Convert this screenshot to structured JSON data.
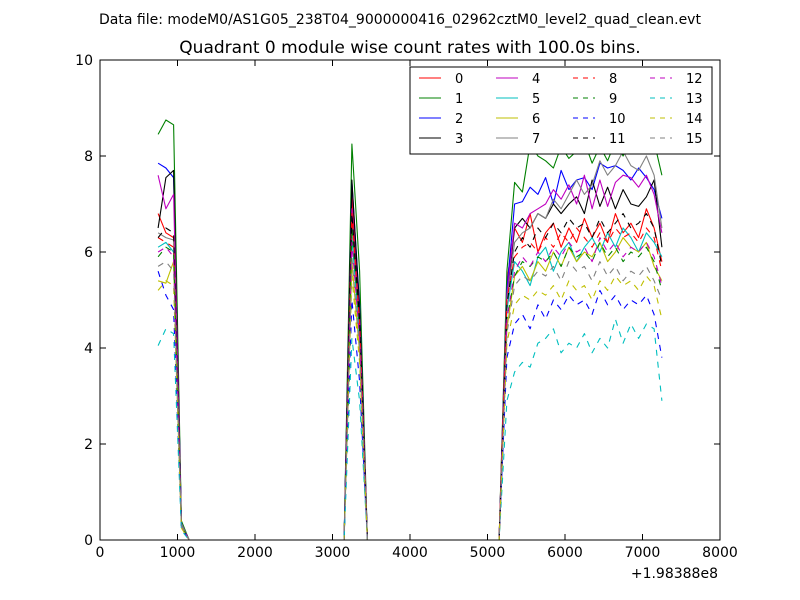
{
  "suptitle": "Data file: modeM0/AS1G05_238T04_9000000416_02962cztM0_level2_quad_clean.evt",
  "chart_data": {
    "type": "line",
    "title": "Quadrant 0 module wise count rates with 100.0s bins.",
    "xlabel": "",
    "ylabel": "",
    "x_offset_label": "+1.98388e8",
    "xlim": [
      0,
      8000
    ],
    "ylim": [
      0,
      10
    ],
    "xticks": [
      0,
      1000,
      2000,
      3000,
      4000,
      5000,
      6000,
      7000,
      8000
    ],
    "yticks": [
      0,
      2,
      4,
      6,
      8,
      10
    ],
    "grid": false,
    "legend_placement": "top-right",
    "legend_columns": 4,
    "x": [
      750,
      850,
      950,
      1050,
      1150,
      1250,
      3150,
      3250,
      3350,
      3450,
      3550,
      5150,
      5250,
      5350,
      5450,
      5550,
      5650,
      5750,
      5850,
      5950,
      6050,
      6150,
      6250,
      6350,
      6450,
      6550,
      6650,
      6750,
      6850,
      6950,
      7050,
      7150,
      7250
    ],
    "series": [
      {
        "name": "0",
        "color": "#ff0000",
        "dash": "solid",
        "values": [
          6.8,
          6.4,
          6.3,
          0.3,
          0.0,
          0.0,
          0.0,
          7.2,
          4.7,
          0.0,
          0.0,
          0.0,
          5.4,
          6.5,
          6.2,
          6.8,
          6.0,
          6.4,
          6.6,
          6.1,
          6.5,
          6.2,
          6.7,
          6.3,
          6.6,
          6.2,
          6.8,
          6.4,
          6.6,
          6.3,
          6.9,
          6.5,
          5.8
        ]
      },
      {
        "name": "1",
        "color": "#008000",
        "dash": "solid",
        "values": [
          8.45,
          8.75,
          8.65,
          0.4,
          0.0,
          0.0,
          0.0,
          8.25,
          5.6,
          0.0,
          0.0,
          0.0,
          5.6,
          7.45,
          7.25,
          8.25,
          8.0,
          7.9,
          7.75,
          8.2,
          7.95,
          8.1,
          8.3,
          7.85,
          8.2,
          7.9,
          8.3,
          8.0,
          8.4,
          8.25,
          8.5,
          8.3,
          7.6
        ]
      },
      {
        "name": "2",
        "color": "#0000ff",
        "dash": "solid",
        "values": [
          7.85,
          7.75,
          7.55,
          0.35,
          0.0,
          0.0,
          0.0,
          7.45,
          4.9,
          0.0,
          0.0,
          0.0,
          5.2,
          7.0,
          7.05,
          7.35,
          7.2,
          7.55,
          7.0,
          7.7,
          7.3,
          7.5,
          7.55,
          7.3,
          7.85,
          7.75,
          7.8,
          7.7,
          7.5,
          7.75,
          7.55,
          7.3,
          6.7
        ]
      },
      {
        "name": "3",
        "color": "#000000",
        "dash": "solid",
        "values": [
          6.5,
          7.55,
          7.7,
          0.35,
          0.0,
          0.0,
          0.0,
          7.5,
          4.8,
          0.0,
          0.0,
          0.0,
          5.0,
          6.5,
          6.7,
          6.5,
          6.8,
          6.7,
          7.0,
          6.8,
          7.0,
          7.15,
          6.8,
          7.5,
          6.95,
          7.35,
          6.9,
          7.3,
          7.0,
          6.95,
          7.15,
          7.5,
          6.1
        ]
      },
      {
        "name": "4",
        "color": "#bf00bf",
        "dash": "solid",
        "values": [
          7.6,
          6.9,
          7.2,
          0.3,
          0.0,
          0.0,
          0.0,
          6.9,
          4.6,
          0.0,
          0.0,
          0.0,
          5.1,
          6.6,
          6.5,
          6.8,
          6.9,
          7.0,
          7.3,
          7.1,
          7.4,
          7.0,
          7.6,
          6.9,
          7.5,
          6.95,
          7.45,
          7.6,
          7.55,
          7.35,
          7.6,
          7.2,
          6.4
        ]
      },
      {
        "name": "5",
        "color": "#00bfbf",
        "dash": "solid",
        "values": [
          6.1,
          6.2,
          6.0,
          0.3,
          0.0,
          0.0,
          0.0,
          6.3,
          4.2,
          0.0,
          0.0,
          0.0,
          4.8,
          5.8,
          5.6,
          5.3,
          5.9,
          6.1,
          5.6,
          6.0,
          6.2,
          5.8,
          6.1,
          6.3,
          6.0,
          6.4,
          6.1,
          6.5,
          6.3,
          6.0,
          6.4,
          6.2,
          5.9
        ]
      },
      {
        "name": "6",
        "color": "#bfbf00",
        "dash": "solid",
        "values": [
          5.4,
          5.35,
          5.8,
          0.3,
          0.0,
          0.0,
          0.0,
          5.8,
          3.9,
          0.0,
          0.0,
          0.0,
          4.4,
          5.5,
          5.7,
          5.4,
          5.8,
          5.6,
          6.0,
          5.7,
          6.1,
          5.8,
          6.0,
          5.9,
          6.2,
          5.8,
          6.0,
          6.3,
          6.1,
          6.0,
          6.2,
          5.7,
          5.4
        ]
      },
      {
        "name": "7",
        "color": "#808080",
        "dash": "solid",
        "values": [
          6.4,
          6.3,
          6.25,
          0.35,
          0.0,
          0.0,
          0.0,
          6.6,
          4.4,
          0.0,
          0.0,
          0.0,
          5.0,
          6.2,
          6.4,
          6.5,
          6.8,
          6.7,
          7.1,
          6.9,
          7.2,
          7.5,
          7.2,
          7.4,
          7.9,
          7.6,
          7.8,
          8.1,
          7.8,
          7.7,
          8.0,
          7.6,
          6.5
        ]
      },
      {
        "name": "8",
        "color": "#ff0000",
        "dash": "dashed",
        "values": [
          6.3,
          6.2,
          6.1,
          0.3,
          0.0,
          0.0,
          0.0,
          6.8,
          4.5,
          0.0,
          0.0,
          0.0,
          5.0,
          5.9,
          6.1,
          6.2,
          6.0,
          6.3,
          6.1,
          6.4,
          6.2,
          6.5,
          6.3,
          6.1,
          6.4,
          6.2,
          6.5,
          6.3,
          6.4,
          6.2,
          6.5,
          6.3,
          5.6
        ]
      },
      {
        "name": "9",
        "color": "#008000",
        "dash": "dashed",
        "values": [
          5.9,
          6.1,
          6.0,
          0.3,
          0.0,
          0.0,
          0.0,
          6.5,
          4.4,
          0.0,
          0.0,
          0.0,
          4.6,
          5.5,
          5.8,
          5.7,
          5.9,
          5.8,
          6.0,
          5.7,
          6.1,
          5.9,
          6.0,
          5.8,
          6.2,
          5.9,
          6.1,
          5.8,
          6.0,
          5.9,
          6.1,
          5.8,
          5.2
        ]
      },
      {
        "name": "10",
        "color": "#0000ff",
        "dash": "dashed",
        "values": [
          5.6,
          5.1,
          4.8,
          0.25,
          0.0,
          0.0,
          0.0,
          5.0,
          3.3,
          0.0,
          0.0,
          0.0,
          3.8,
          4.5,
          4.7,
          4.4,
          4.9,
          4.6,
          5.0,
          4.8,
          5.1,
          4.9,
          5.0,
          4.7,
          5.2,
          4.9,
          5.1,
          4.8,
          5.0,
          4.9,
          5.1,
          4.7,
          3.8
        ]
      },
      {
        "name": "11",
        "color": "#000000",
        "dash": "dashed",
        "values": [
          6.3,
          6.5,
          6.4,
          0.3,
          0.0,
          0.0,
          0.0,
          6.8,
          4.6,
          0.0,
          0.0,
          0.0,
          4.9,
          6.0,
          6.3,
          6.1,
          6.5,
          6.3,
          6.6,
          6.4,
          6.7,
          6.5,
          6.6,
          6.3,
          6.7,
          6.4,
          6.6,
          6.8,
          6.5,
          6.6,
          6.8,
          6.5,
          5.7
        ]
      },
      {
        "name": "12",
        "color": "#bf00bf",
        "dash": "dashed",
        "values": [
          6.0,
          6.1,
          5.9,
          0.3,
          0.0,
          0.0,
          0.0,
          6.2,
          4.2,
          0.0,
          0.0,
          0.0,
          4.6,
          5.6,
          5.9,
          5.7,
          6.0,
          5.8,
          6.1,
          5.9,
          6.2,
          6.0,
          6.1,
          5.8,
          6.3,
          6.0,
          6.2,
          5.9,
          6.1,
          6.0,
          6.2,
          5.9,
          5.3
        ]
      },
      {
        "name": "13",
        "color": "#00bfbf",
        "dash": "dashed",
        "values": [
          4.05,
          4.4,
          4.3,
          0.2,
          0.0,
          0.0,
          0.0,
          4.2,
          2.9,
          0.0,
          0.0,
          0.0,
          2.9,
          3.5,
          3.7,
          3.6,
          4.1,
          4.2,
          4.4,
          3.9,
          4.1,
          4.0,
          4.3,
          3.9,
          4.2,
          4.0,
          4.6,
          4.1,
          4.5,
          4.2,
          4.5,
          4.4,
          2.9
        ]
      },
      {
        "name": "14",
        "color": "#bfbf00",
        "dash": "dashed",
        "values": [
          5.2,
          5.4,
          5.3,
          0.25,
          0.0,
          0.0,
          0.0,
          5.5,
          3.7,
          0.0,
          0.0,
          0.0,
          4.1,
          4.9,
          5.1,
          5.0,
          5.2,
          5.1,
          5.3,
          5.0,
          5.4,
          5.2,
          5.3,
          5.0,
          5.4,
          5.2,
          5.5,
          5.3,
          5.4,
          5.2,
          5.5,
          5.3,
          4.6
        ]
      },
      {
        "name": "15",
        "color": "#808080",
        "dash": "dashed",
        "values": [
          5.7,
          5.8,
          5.6,
          0.3,
          0.0,
          0.0,
          0.0,
          5.9,
          4.0,
          0.0,
          0.0,
          0.0,
          4.3,
          5.3,
          5.5,
          5.4,
          5.6,
          5.5,
          5.7,
          5.4,
          5.8,
          5.6,
          5.7,
          5.4,
          5.8,
          5.5,
          5.7,
          5.4,
          5.6,
          5.5,
          5.7,
          5.4,
          5.0
        ]
      }
    ]
  }
}
